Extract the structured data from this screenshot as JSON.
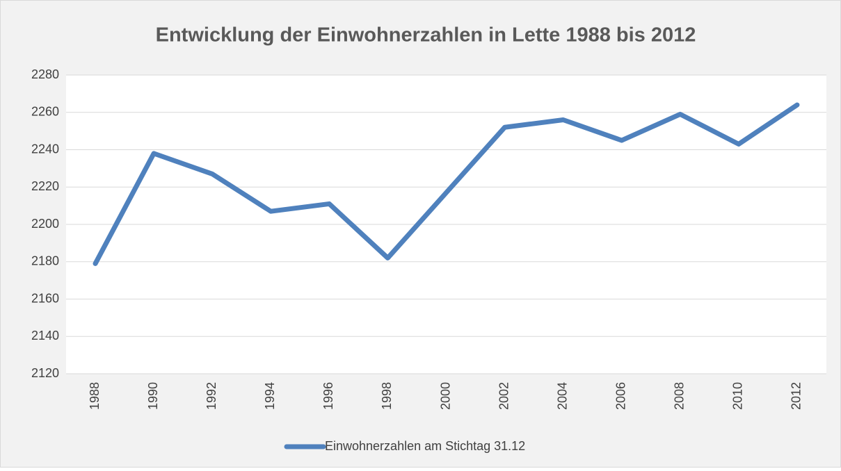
{
  "chart_data": {
    "type": "line",
    "title": "Entwicklung der Einwohnerzahlen in Lette 1988 bis 2012",
    "categories": [
      "1988",
      "1990",
      "1992",
      "1994",
      "1996",
      "1998",
      "2000",
      "2002",
      "2004",
      "2006",
      "2008",
      "2010",
      "2012"
    ],
    "series": [
      {
        "name": "Einwohnerzahlen am Stichtag 31.12",
        "color": "#4f81bd",
        "values": [
          2179,
          2238,
          2227,
          2207,
          2211,
          2182,
          2217,
          2252,
          2256,
          2245,
          2259,
          2243,
          2264
        ]
      }
    ],
    "ylim": [
      2120,
      2280
    ],
    "yticks": [
      2120,
      2140,
      2160,
      2180,
      2200,
      2220,
      2240,
      2260,
      2280
    ],
    "grid": true,
    "legend": "bottom"
  }
}
